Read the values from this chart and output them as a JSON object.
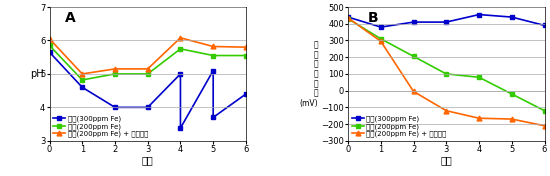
{
  "panel_A": {
    "title": "A",
    "xlabel": "日数",
    "ylabel": "pH",
    "ylim": [
      3,
      7
    ],
    "yticks": [
      3,
      4,
      5,
      6,
      7
    ],
    "xlim": [
      0,
      6
    ],
    "xticks": [
      0,
      1,
      2,
      3,
      4,
      5,
      6
    ],
    "series": [
      {
        "label": "溶液(300ppm Fe)",
        "color": "#0000CC",
        "marker": "s",
        "x": [
          0,
          1,
          2,
          3,
          4,
          4,
          5,
          5,
          6
        ],
        "y": [
          5.65,
          4.6,
          4.0,
          4.0,
          5.0,
          3.38,
          5.1,
          3.7,
          4.4
        ]
      },
      {
        "label": "寒天(200ppm Fe)",
        "color": "#33CC00",
        "marker": "s",
        "x": [
          0,
          1,
          2,
          3,
          4,
          5,
          6
        ],
        "y": [
          5.85,
          4.82,
          5.0,
          5.0,
          5.75,
          5.55,
          5.55
        ]
      },
      {
        "label": "寒天(200ppm Fe) + デンプン",
        "color": "#FF6600",
        "marker": "^",
        "x": [
          0,
          1,
          2,
          3,
          4,
          5,
          6
        ],
        "y": [
          6.05,
          5.0,
          5.15,
          5.15,
          6.08,
          5.82,
          5.8
        ]
      }
    ]
  },
  "panel_B": {
    "title": "B",
    "xlabel": "日数",
    "ylabel_lines": [
      "酸",
      "化",
      "還",
      "元",
      "電",
      "位",
      "(mV)"
    ],
    "ylim": [
      -300,
      500
    ],
    "yticks": [
      -300,
      -200,
      -100,
      0,
      100,
      200,
      300,
      400,
      500
    ],
    "xlim": [
      0,
      6
    ],
    "xticks": [
      0,
      1,
      2,
      3,
      4,
      5,
      6
    ],
    "series": [
      {
        "label": "溶液(300ppm Fe)",
        "color": "#0000CC",
        "marker": "s",
        "x": [
          0,
          1,
          2,
          3,
          4,
          5,
          6
        ],
        "y": [
          440,
          380,
          410,
          410,
          455,
          440,
          390
        ]
      },
      {
        "label": "寒天(200ppm Fe)",
        "color": "#33CC00",
        "marker": "s",
        "x": [
          0,
          1,
          2,
          3,
          4,
          5,
          6
        ],
        "y": [
          430,
          310,
          205,
          100,
          80,
          -20,
          -120
        ]
      },
      {
        "label": "寒天(200ppm Fe) + デンプン",
        "color": "#FF6600",
        "marker": "^",
        "x": [
          0,
          1,
          2,
          3,
          4,
          5,
          6
        ],
        "y": [
          435,
          295,
          -5,
          -120,
          -165,
          -170,
          -210
        ]
      }
    ]
  },
  "bg_color": "#ffffff",
  "grid_color": "#aaaaaa",
  "tick_labelsize": 6,
  "axis_labelsize": 7,
  "legend_fontsize": 5,
  "linewidth": 1.2,
  "markersize": 3.5
}
